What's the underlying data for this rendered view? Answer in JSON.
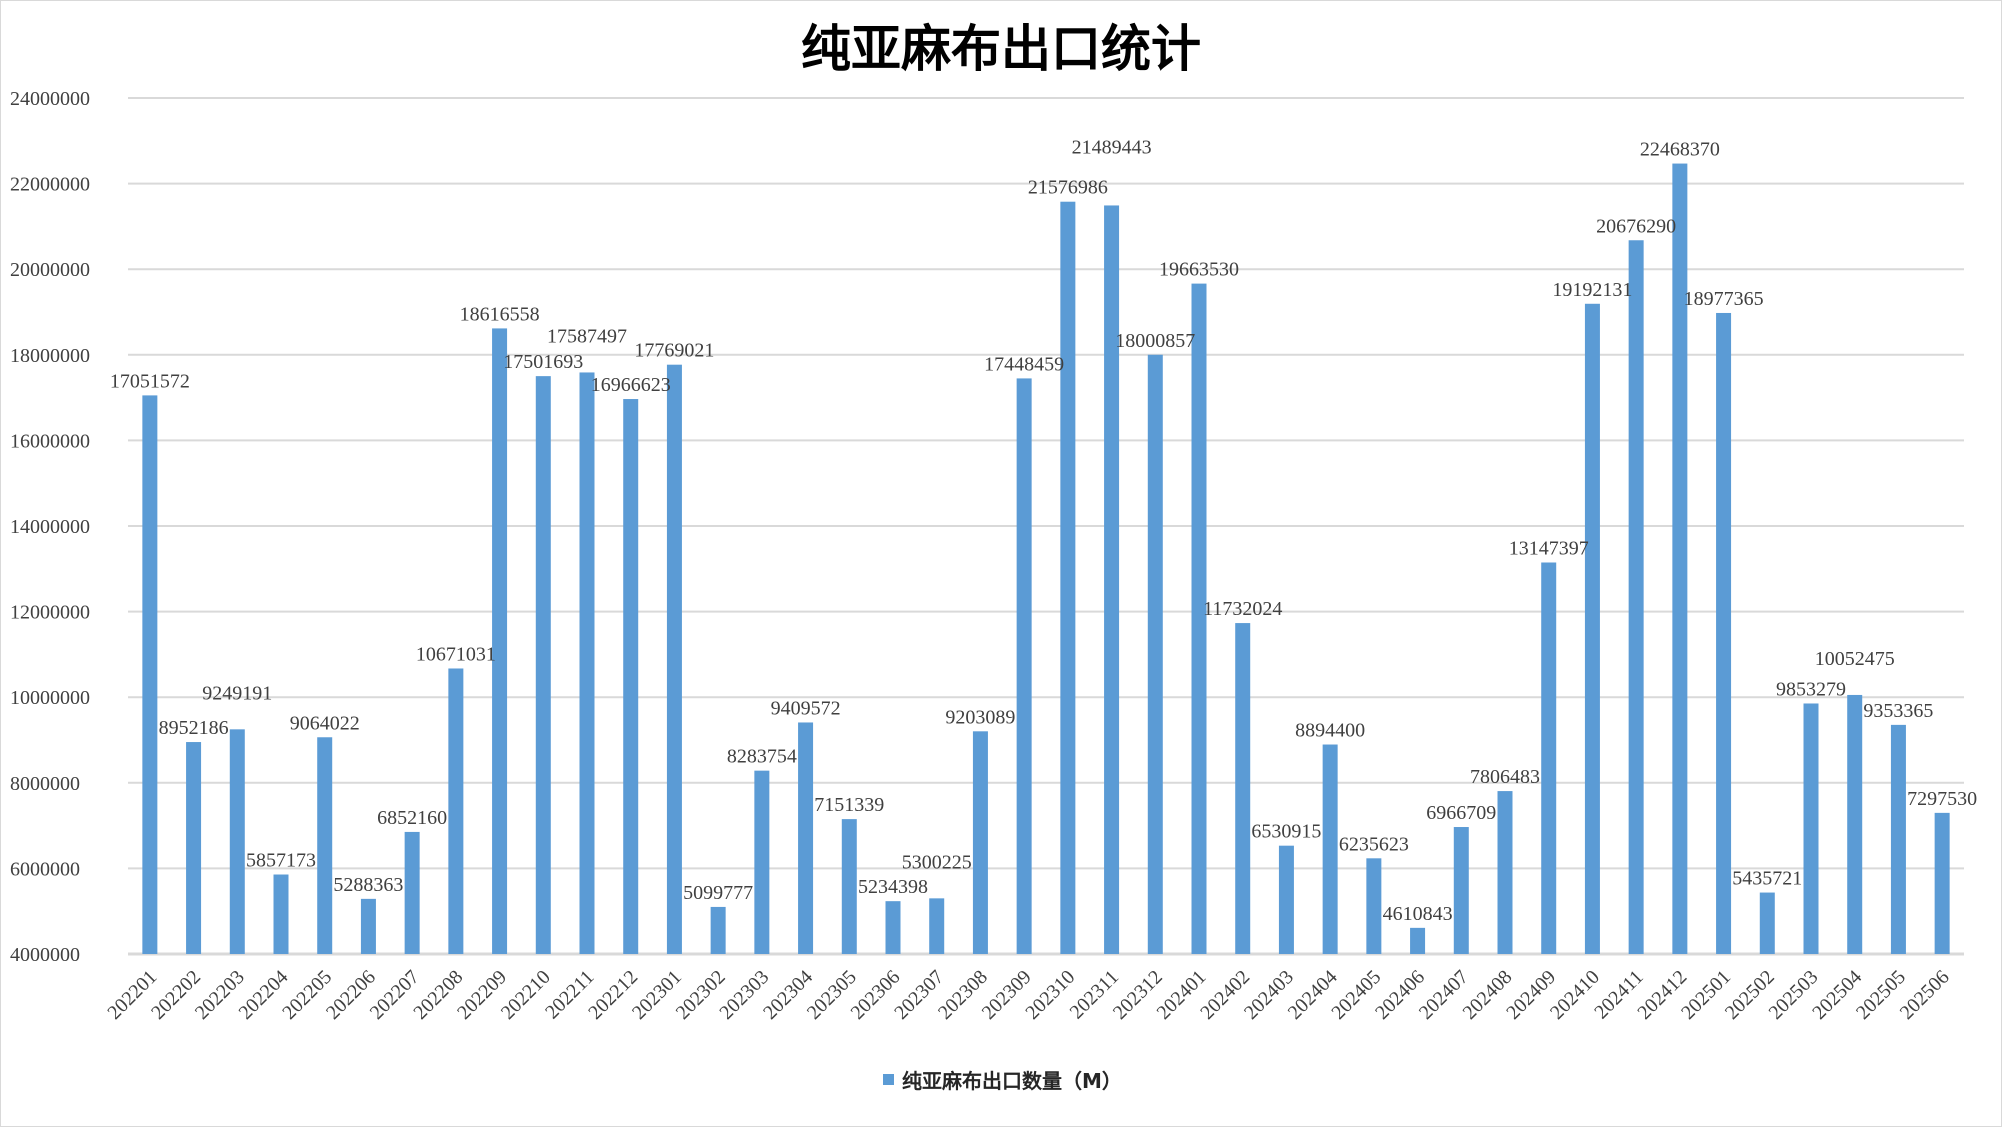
{
  "chart_data": {
    "type": "bar",
    "title": "纯亚麻布出口统计",
    "xlabel": "",
    "ylabel": "",
    "ylim": [
      4000000,
      24000000
    ],
    "yticks": [
      "4000000",
      "6000000",
      "8000000",
      "10000000",
      "12000000",
      "14000000",
      "16000000",
      "18000000",
      "20000000",
      "22000000",
      "24000000"
    ],
    "ytick_values": [
      4000000,
      6000000,
      8000000,
      10000000,
      12000000,
      14000000,
      16000000,
      18000000,
      20000000,
      22000000,
      24000000
    ],
    "grid": true,
    "legend_position": "bottom",
    "categories": [
      "202201",
      "202202",
      "202203",
      "202204",
      "202205",
      "202206",
      "202207",
      "202208",
      "202209",
      "202210",
      "202211",
      "202212",
      "202301",
      "202302",
      "202303",
      "202304",
      "202305",
      "202306",
      "202307",
      "202308",
      "202309",
      "202310",
      "202311",
      "202312",
      "202401",
      "202402",
      "202403",
      "202404",
      "202405",
      "202406",
      "202407",
      "202408",
      "202409",
      "202410",
      "202411",
      "202412",
      "202501",
      "202502",
      "202503",
      "202504",
      "202505",
      "202506"
    ],
    "series": [
      {
        "name": "纯亚麻布出口数量（M）",
        "color": "#5b9bd5",
        "values": [
          17051572,
          8952186,
          9249191,
          5857173,
          9064022,
          5288363,
          6852160,
          10671031,
          18616558,
          17501693,
          17587497,
          16966623,
          17769021,
          5099777,
          8283754,
          9409572,
          7151339,
          5234398,
          5300225,
          9203089,
          17448459,
          21576986,
          21489443,
          18000857,
          19663530,
          11732024,
          6530915,
          8894400,
          6235623,
          4610843,
          6966709,
          7806483,
          13147397,
          19192131,
          20676290,
          22468370,
          18977365,
          5435721,
          9853279,
          10052475,
          9353365,
          7297530
        ]
      }
    ]
  }
}
